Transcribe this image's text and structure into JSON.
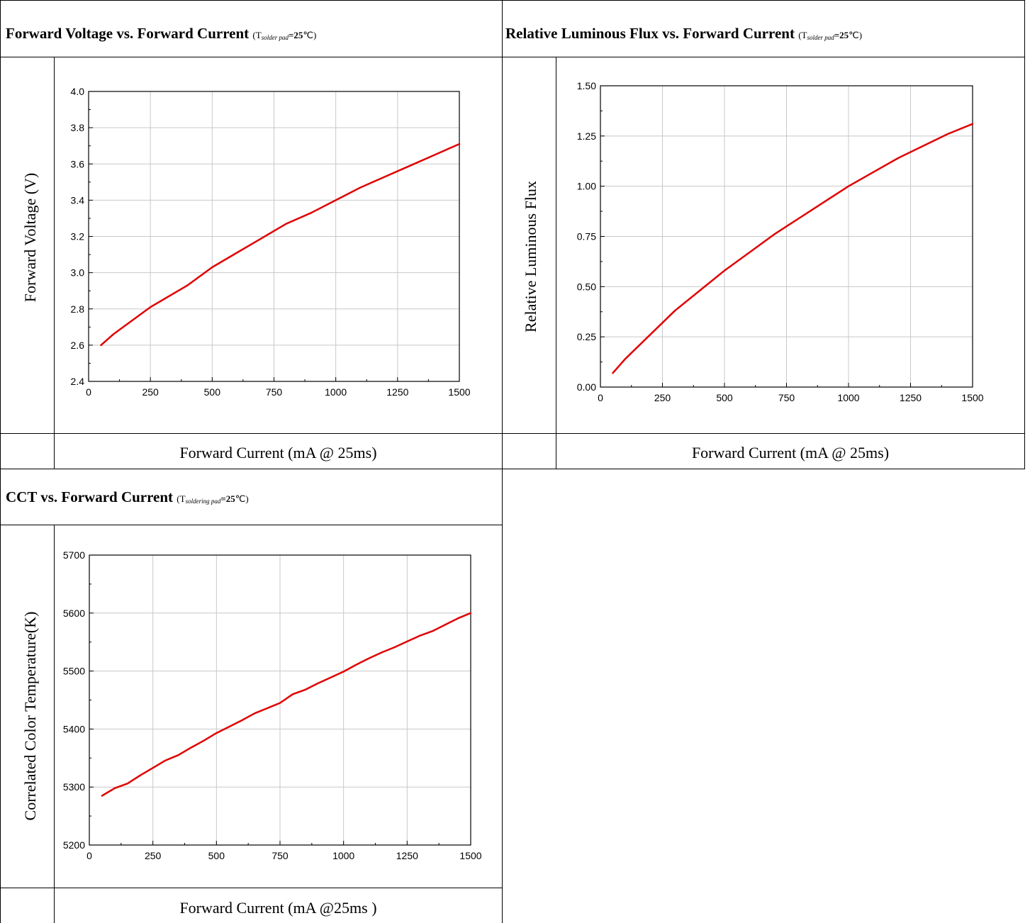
{
  "colors": {
    "curve": "#e00000",
    "grid": "#c8c8c8",
    "border": "#000000"
  },
  "panels": [
    {
      "id": "vf",
      "title_main": "Forward Voltage vs. Forward Current ",
      "cond_open": "(T",
      "cond_sub": "solder pad",
      "cond_val": "=25",
      "cond_close": "℃)",
      "xcaption": "Forward Current (mA @ 25ms)",
      "chart_data": {
        "type": "line",
        "ylabel": "Forward Voltage (V)",
        "xlim": [
          0,
          1500
        ],
        "ylim": [
          2.4,
          4.0
        ],
        "xticks": [
          "0",
          "250",
          "500",
          "750",
          "1000",
          "1250",
          "1500"
        ],
        "yticks": [
          "2.4",
          "2.6",
          "2.8",
          "3.0",
          "3.2",
          "3.4",
          "3.6",
          "3.8",
          "4.0"
        ],
        "grid": true,
        "series": [
          {
            "x": [
              50,
              100,
              150,
              200,
              250,
              300,
              400,
              500,
              600,
              700,
              800,
              900,
              1000,
              1100,
              1200,
              1300,
              1400,
              1500
            ],
            "y": [
              2.6,
              2.66,
              2.71,
              2.76,
              2.81,
              2.85,
              2.93,
              3.03,
              3.11,
              3.19,
              3.27,
              3.33,
              3.4,
              3.47,
              3.53,
              3.59,
              3.65,
              3.71
            ]
          }
        ]
      }
    },
    {
      "id": "flux",
      "title_main": "Relative Luminous Flux vs. Forward Current ",
      "cond_open": "(T",
      "cond_sub": "solder pad",
      "cond_val": "=25",
      "cond_close": "℃)",
      "xcaption": "Forward Current (mA @ 25ms)",
      "chart_data": {
        "type": "line",
        "ylabel": "Relative Luminous Flux",
        "xlim": [
          0,
          1500
        ],
        "ylim": [
          0,
          1.5
        ],
        "xticks": [
          "0",
          "250",
          "500",
          "750",
          "1000",
          "1250",
          "1500"
        ],
        "yticks": [
          "0.00",
          "0.25",
          "0.50",
          "0.75",
          "1.00",
          "1.25",
          "1.50"
        ],
        "grid": true,
        "series": [
          {
            "x": [
              50,
              100,
              200,
              250,
              300,
              400,
              500,
              600,
              700,
              750,
              800,
              900,
              1000,
              1100,
              1200,
              1300,
              1400,
              1500
            ],
            "y": [
              0.07,
              0.14,
              0.26,
              0.32,
              0.38,
              0.48,
              0.58,
              0.67,
              0.76,
              0.8,
              0.84,
              0.92,
              1.0,
              1.07,
              1.14,
              1.2,
              1.26,
              1.31
            ]
          }
        ]
      }
    },
    {
      "id": "cct",
      "title_main": "CCT vs. Forward Current ",
      "cond_open": "(T",
      "cond_sub": "soldering pad",
      "cond_val": "=25",
      "cond_close": "℃)",
      "xcaption": "Forward Current (mA @25ms )",
      "chart_data": {
        "type": "line",
        "ylabel": "Correlated Color Temperature(K)",
        "xlim": [
          0,
          1500
        ],
        "ylim": [
          5200,
          5700
        ],
        "xticks": [
          "0",
          "250",
          "500",
          "750",
          "1000",
          "1250",
          "1500"
        ],
        "yticks": [
          "5200",
          "5300",
          "5400",
          "5500",
          "5600",
          "5700"
        ],
        "grid": true,
        "series": [
          {
            "x": [
              50,
              100,
              150,
              200,
              250,
              300,
              350,
              400,
              450,
              500,
              550,
              600,
              650,
              700,
              750,
              800,
              850,
              900,
              950,
              1000,
              1050,
              1100,
              1150,
              1200,
              1250,
              1300,
              1350,
              1400,
              1450,
              1500
            ],
            "y": [
              5285,
              5298,
              5306,
              5320,
              5333,
              5346,
              5355,
              5368,
              5380,
              5393,
              5404,
              5415,
              5427,
              5436,
              5445,
              5460,
              5468,
              5479,
              5489,
              5499,
              5511,
              5522,
              5532,
              5541,
              5551,
              5561,
              5569,
              5580,
              5591,
              5600
            ]
          }
        ]
      }
    }
  ]
}
